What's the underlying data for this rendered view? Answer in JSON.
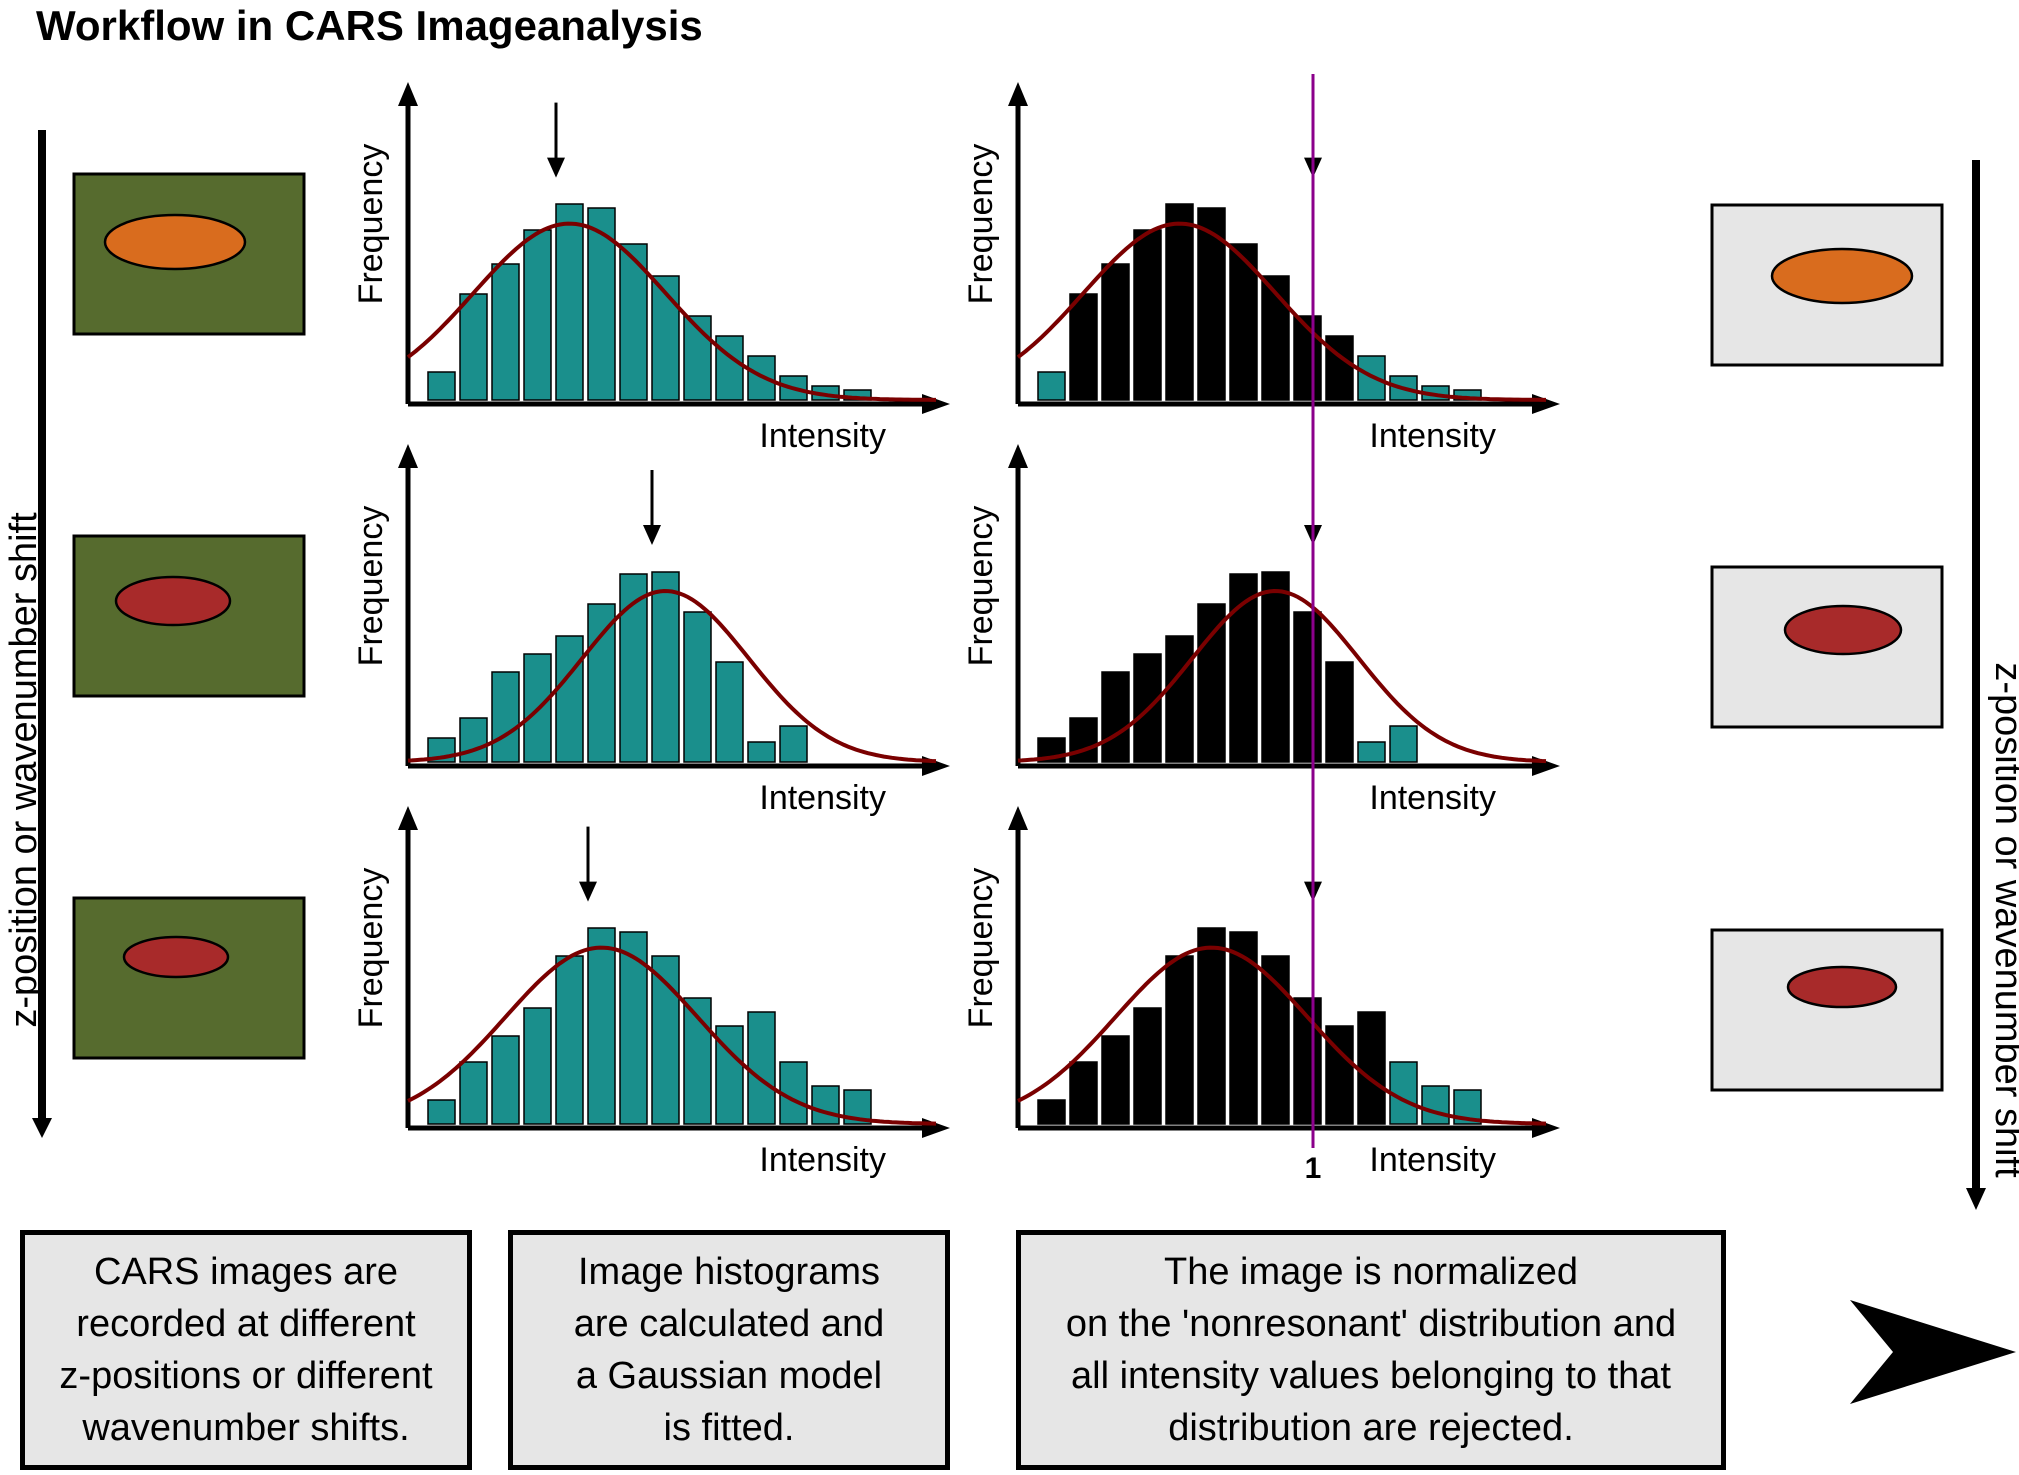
{
  "title": "Workflow in CARS Imageanalysis",
  "axis_labels": {
    "ylabel": "Frequency",
    "xlabel": "Intensity"
  },
  "side_labels": {
    "left": "z-position or wavenumber shift",
    "right": "z-position or wavenumber shift"
  },
  "normalization_tick": "1",
  "captions": [
    "CARS images are\nrecorded at different\nz-positions or different\nwavenumber shifts.",
    "Image histograms\nare calculated and\na Gaussian model\nis fitted.",
    "The image is normalized\non the 'nonresonant' distribution and\nall intensity values belonging to that\ndistribution are rejected."
  ],
  "colors": {
    "raw_background": "#566b2e",
    "normalized_background": "#e6e6e6",
    "ellipse_orange": "#d96c1e",
    "ellipse_red": "#a82a2a",
    "bar_teal": "#1a8f8c",
    "bar_rejected": "#000000",
    "gaussian_curve": "#7a0000",
    "normalization_line": "#8b008b"
  },
  "icons": [
    "arrow-down-icon",
    "arrow-up-icon",
    "arrow-right-icon",
    "chevron-right-icon"
  ],
  "chart_data": [
    {
      "type": "bar",
      "row": 1,
      "panel": "raw",
      "xlabel": "Intensity",
      "ylabel": "Frequency",
      "values": [
        0.14,
        0.53,
        0.68,
        0.85,
        0.98,
        0.96,
        0.78,
        0.62,
        0.42,
        0.32,
        0.22,
        0.12,
        0.07,
        0.05
      ],
      "peak_marker_bin": 4.5
    },
    {
      "type": "bar",
      "row": 2,
      "panel": "raw",
      "xlabel": "Intensity",
      "ylabel": "Frequency",
      "values": [
        0.12,
        0.22,
        0.45,
        0.54,
        0.63,
        0.79,
        0.94,
        0.95,
        0.75,
        0.5,
        0.1,
        0.18
      ],
      "peak_marker_bin": 7.5
    },
    {
      "type": "bar",
      "row": 3,
      "panel": "raw",
      "xlabel": "Intensity",
      "ylabel": "Frequency",
      "values": [
        0.12,
        0.31,
        0.44,
        0.58,
        0.84,
        0.98,
        0.96,
        0.84,
        0.63,
        0.49,
        0.56,
        0.31,
        0.19,
        0.17
      ],
      "peak_marker_bin": 5.5
    },
    {
      "type": "bar",
      "row": 1,
      "panel": "normalized",
      "xlabel": "Intensity",
      "ylabel": "Frequency",
      "values": [
        0.14,
        0.53,
        0.68,
        0.85,
        0.98,
        0.96,
        0.78,
        0.62,
        0.42,
        0.32,
        0.22,
        0.12,
        0.07,
        0.05
      ],
      "rejected_from_bin": 1,
      "rejected_to_bin": 9
    },
    {
      "type": "bar",
      "row": 2,
      "panel": "normalized",
      "xlabel": "Intensity",
      "ylabel": "Frequency",
      "values": [
        0.12,
        0.22,
        0.45,
        0.54,
        0.63,
        0.79,
        0.94,
        0.95,
        0.75,
        0.5,
        0.1,
        0.18
      ],
      "rejected_from_bin": 0,
      "rejected_to_bin": 9
    },
    {
      "type": "bar",
      "row": 3,
      "panel": "normalized",
      "xlabel": "Intensity",
      "ylabel": "Frequency",
      "values": [
        0.12,
        0.31,
        0.44,
        0.58,
        0.84,
        0.98,
        0.96,
        0.84,
        0.63,
        0.49,
        0.56,
        0.31,
        0.19,
        0.17
      ],
      "rejected_from_bin": 0,
      "rejected_to_bin": 10
    }
  ]
}
